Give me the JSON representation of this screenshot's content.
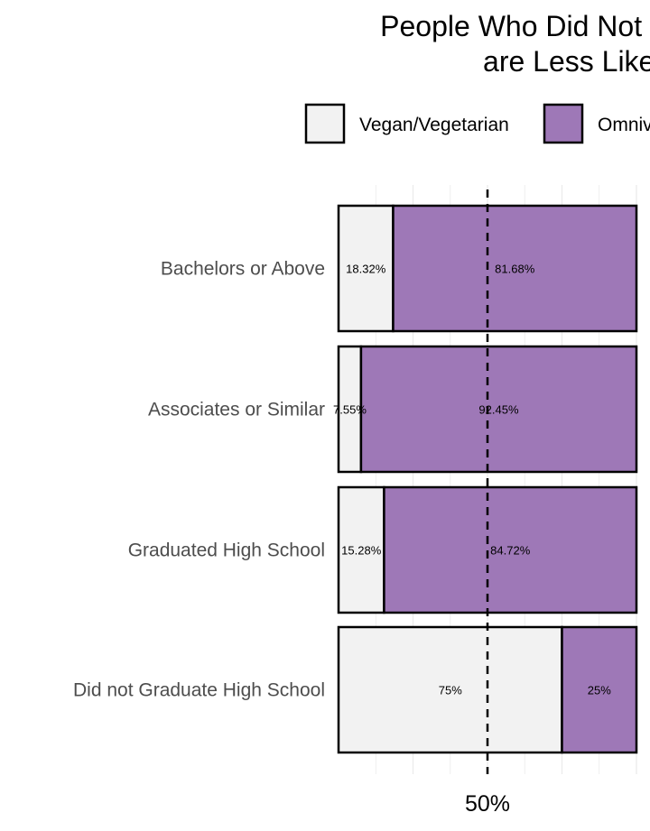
{
  "chart_data": {
    "type": "bar",
    "orientation": "horizontal",
    "stacked": "percent",
    "title_lines": [
      "People Who Did Not Graduate High School",
      "are Less Likely to Eat Meat"
    ],
    "categories": [
      "Bachelors or Above",
      "Associates or Similar",
      "Graduated High School",
      "Did not Graduate High School"
    ],
    "series": [
      {
        "name": "Vegan/Vegetarian",
        "color": "#f2f2f2",
        "values": [
          18.32,
          7.55,
          15.28,
          75
        ],
        "labels": [
          "18.32%",
          "7.55%",
          "15.28%",
          "75%"
        ]
      },
      {
        "name": "Omnivore",
        "color": "#9e78b7",
        "values": [
          81.68,
          92.45,
          84.72,
          25
        ],
        "labels": [
          "81.68%",
          "92.45%",
          "84.72%",
          "25%"
        ]
      }
    ],
    "xlim": [
      0,
      100
    ],
    "x_ticks": [
      "50%"
    ],
    "reference_line": {
      "x": 50,
      "style": "dashed"
    },
    "legend_position": "top",
    "grid": true
  }
}
